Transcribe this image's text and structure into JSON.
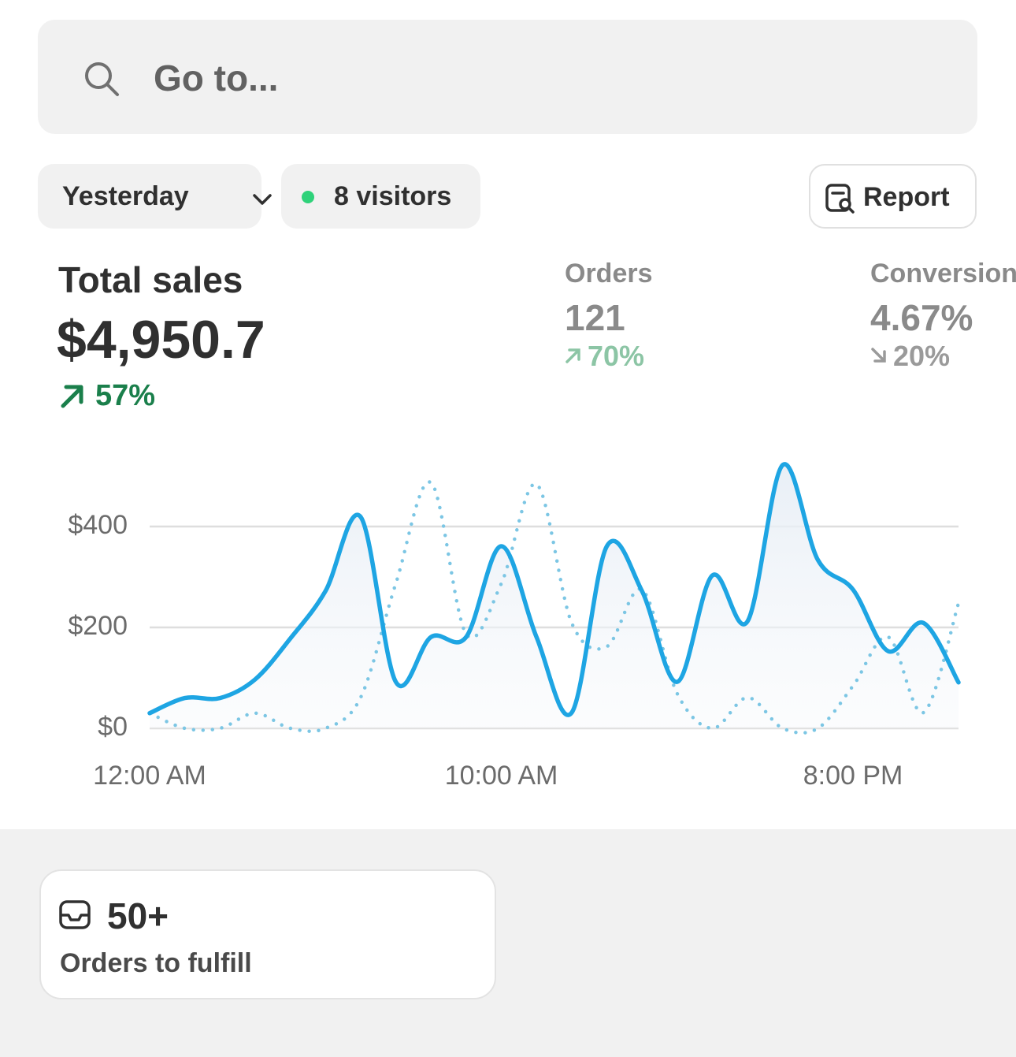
{
  "search": {
    "placeholder": "Go to..."
  },
  "filters": {
    "date": "Yesterday",
    "visitors": "8 visitors",
    "report": "Report"
  },
  "metrics": [
    {
      "label": "Total sales",
      "value": "$4,950.7",
      "change": "57%"
    },
    {
      "label": "Orders",
      "value": "121",
      "change": "70%"
    },
    {
      "label": "Conversion",
      "value": "4.67%",
      "change": "20%"
    }
  ],
  "chart_data": {
    "type": "line",
    "categories": [
      "12:00 AM",
      null,
      null,
      null,
      null,
      null,
      null,
      null,
      null,
      null,
      "10:00 AM",
      null,
      null,
      null,
      null,
      null,
      null,
      null,
      null,
      null,
      "8:00 PM",
      null,
      null,
      null
    ],
    "series": [
      {
        "color": "#1ea5e3",
        "line_style": "solid",
        "values": [
          30,
          60,
          60,
          97,
          178,
          272,
          419,
          92,
          181,
          181,
          361,
          181,
          31,
          361,
          272,
          92,
          303,
          212,
          522,
          334,
          275,
          153,
          209,
          91
        ]
      },
      {
        "color": "#7cc6e4",
        "line_style": "dotted",
        "values": [
          30,
          0,
          0,
          30,
          0,
          0,
          61,
          287,
          487,
          187,
          287,
          484,
          209,
          162,
          275,
          69,
          0,
          61,
          0,
          0,
          84,
          181,
          31,
          248
        ]
      }
    ],
    "ylim": [
      0,
      600
    ],
    "yticks": [
      {
        "value": 0,
        "label": "$0"
      },
      {
        "value": 200,
        "label": "$200"
      },
      {
        "value": 400,
        "label": "$400"
      }
    ],
    "grid": true
  },
  "fulfill_card": {
    "value": "50+",
    "label": "Orders to fulfill"
  }
}
